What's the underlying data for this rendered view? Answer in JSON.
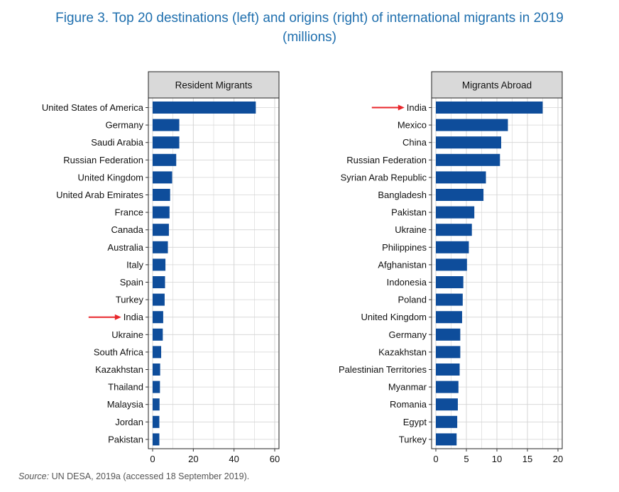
{
  "figure": {
    "title_line1": "Figure 3. Top 20 destinations (left) and origins (right) of international migrants in 2019",
    "title_line2": "(millions)",
    "source_label": "Source:",
    "source_text": "UN DESA, 2019a (accessed 18 September 2019)."
  },
  "colors": {
    "bar": "#0e4d9b",
    "header_bg": "#d9d9d9",
    "arrow": "#e8262b",
    "grid": "#d4d4d4",
    "title": "#1f6fae"
  },
  "chart_data": [
    {
      "type": "bar",
      "orientation": "horizontal",
      "title": "Resident Migrants",
      "categories": [
        "United States of America",
        "Germany",
        "Saudi Arabia",
        "Russian Federation",
        "United Kingdom",
        "United Arab Emirates",
        "France",
        "Canada",
        "Australia",
        "Italy",
        "Spain",
        "Turkey",
        "India",
        "Ukraine",
        "South Africa",
        "Kazakhstan",
        "Thailand",
        "Malaysia",
        "Jordan",
        "Pakistan"
      ],
      "values": [
        50.7,
        13.1,
        13.1,
        11.6,
        9.6,
        8.6,
        8.3,
        8.0,
        7.5,
        6.3,
        6.1,
        5.9,
        5.2,
        5.0,
        4.2,
        3.7,
        3.6,
        3.4,
        3.3,
        3.3
      ],
      "xticks": [
        0,
        20,
        40,
        60
      ],
      "xlim": [
        0,
        60
      ],
      "highlight": "India",
      "grid": true
    },
    {
      "type": "bar",
      "orientation": "horizontal",
      "title": "Migrants Abroad",
      "categories": [
        "India",
        "Mexico",
        "China",
        "Russian Federation",
        "Syrian Arab Republic",
        "Bangladesh",
        "Pakistan",
        "Ukraine",
        "Philippines",
        "Afghanistan",
        "Indonesia",
        "Poland",
        "United Kingdom",
        "Germany",
        "Kazakhstan",
        "Palestinian Territories",
        "Myanmar",
        "Romania",
        "Egypt",
        "Turkey"
      ],
      "values": [
        17.5,
        11.8,
        10.7,
        10.5,
        8.2,
        7.8,
        6.3,
        5.9,
        5.4,
        5.1,
        4.5,
        4.4,
        4.3,
        4.0,
        4.0,
        3.9,
        3.7,
        3.6,
        3.5,
        3.4
      ],
      "xticks": [
        0,
        5,
        10,
        15,
        20
      ],
      "xlim": [
        0,
        20
      ],
      "highlight": "India",
      "grid": true
    }
  ]
}
